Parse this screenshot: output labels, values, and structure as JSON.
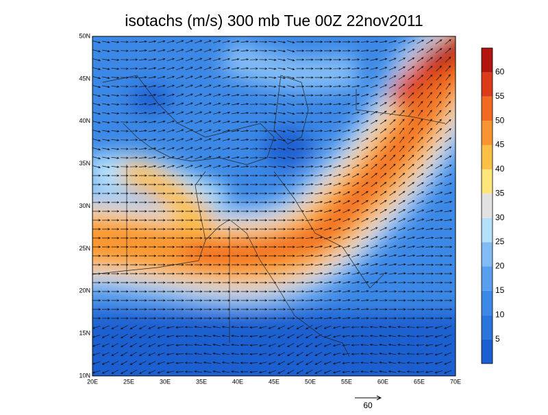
{
  "title": "isotachs (m/s) 300 mb Tue 00Z 22nov2011",
  "latitude_labels": [
    "10N",
    "15N",
    "20N",
    "25N",
    "30N",
    "35N",
    "40N",
    "45N",
    "50N"
  ],
  "longitude_labels": [
    "20E",
    "25E",
    "30E",
    "35E",
    "40E",
    "45E",
    "50E",
    "55E",
    "60E",
    "65E",
    "70E"
  ],
  "colorbar": {
    "labels": [
      "5",
      "10",
      "15",
      "20",
      "25",
      "30",
      "35",
      "40",
      "45",
      "50",
      "55",
      "60"
    ],
    "colors": [
      "#1a5fd0",
      "#2a74de",
      "#3c88e6",
      "#5a9ef0",
      "#82bcf6",
      "#b4e0fc",
      "#e2e2e2",
      "#fde67a",
      "#fcbf45",
      "#f99530",
      "#f26a22",
      "#dc3a18",
      "#b4140e"
    ]
  },
  "reference_vector": {
    "label": "60"
  }
}
